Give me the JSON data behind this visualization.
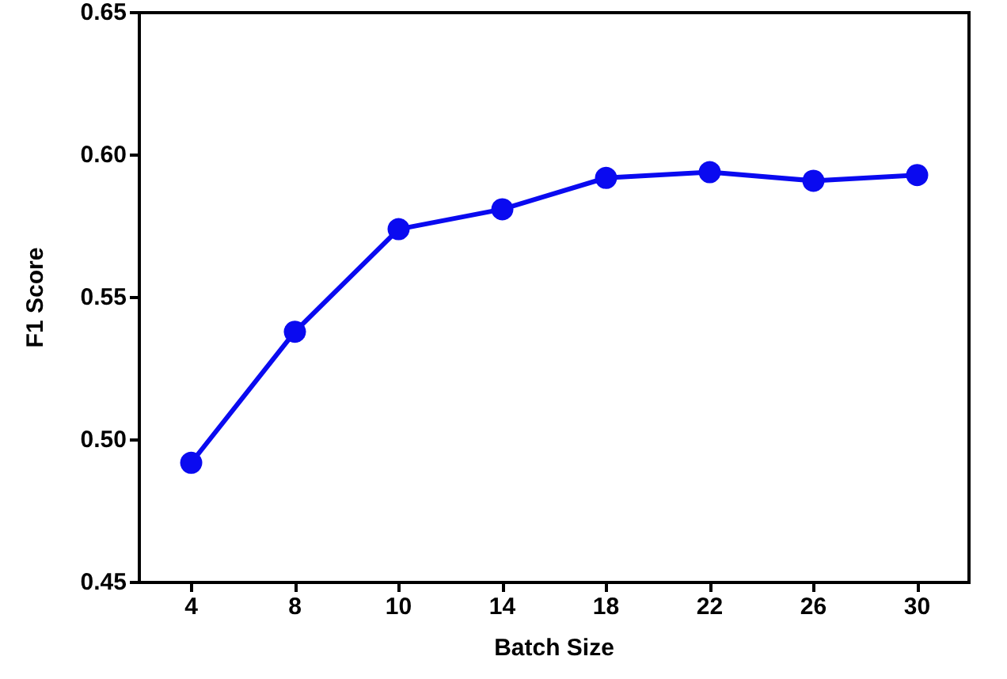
{
  "chart_data": {
    "type": "line",
    "xlabel": "Batch Size",
    "ylabel": "F1 Score",
    "categories": [
      "4",
      "8",
      "10",
      "14",
      "18",
      "22",
      "26",
      "30"
    ],
    "series": [
      {
        "color": "#0a0af0",
        "values": [
          0.492,
          0.538,
          0.574,
          0.581,
          0.592,
          0.594,
          0.591,
          0.593
        ]
      }
    ],
    "ylim": [
      0.45,
      0.65
    ],
    "yticks": [
      {
        "value": 0.45,
        "label": "0.45"
      },
      {
        "value": 0.5,
        "label": "0.50"
      },
      {
        "value": 0.55,
        "label": "0.55"
      },
      {
        "value": 0.6,
        "label": "0.60"
      },
      {
        "value": 0.65,
        "label": "0.65"
      }
    ],
    "grid": false,
    "marker": "circle",
    "line_style": "solid"
  }
}
